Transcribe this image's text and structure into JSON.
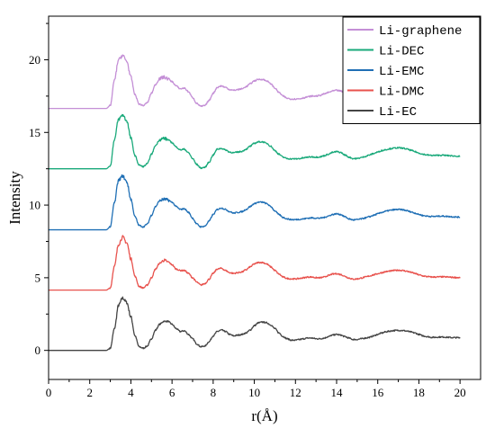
{
  "chart_data": {
    "type": "line",
    "title": "",
    "xlabel": "r(Å)",
    "ylabel": "Intensity",
    "xlim": [
      0,
      21
    ],
    "ylim": [
      -2,
      23
    ],
    "xticks": [
      0,
      2,
      4,
      6,
      8,
      10,
      12,
      14,
      16,
      18,
      20
    ],
    "yticks": [
      0,
      5,
      10,
      15,
      20
    ],
    "grid": false,
    "legend": {
      "position": "top-right",
      "order": [
        "Li-graphene",
        "Li-DEC",
        "Li-EMC",
        "Li-DMC",
        "Li-EC"
      ]
    },
    "series": [
      {
        "name": "Li-EC",
        "color": "#444444",
        "baseline": 0,
        "x": [
          0,
          2.8,
          3.0,
          3.2,
          3.4,
          3.6,
          3.8,
          4.0,
          4.2,
          4.4,
          4.6,
          4.8,
          5.0,
          5.2,
          5.4,
          5.6,
          5.8,
          6.0,
          6.2,
          6.4,
          6.6,
          6.8,
          7.0,
          7.2,
          7.4,
          7.6,
          7.8,
          8.0,
          8.2,
          8.4,
          8.6,
          8.8,
          9.0,
          9.2,
          9.4,
          9.6,
          9.8,
          10.0,
          10.2,
          10.4,
          10.6,
          10.8,
          11.0,
          11.2,
          11.4,
          11.6,
          11.8,
          12.0,
          12.2,
          12.4,
          12.6,
          12.8,
          13.0,
          13.2,
          13.4,
          13.6,
          13.8,
          14.0,
          14.2,
          14.4,
          14.6,
          14.8,
          15.0,
          15.2,
          15.4,
          15.6,
          15.8,
          16.0,
          16.2,
          16.4,
          16.6,
          16.8,
          17.0,
          17.2,
          17.4,
          17.6,
          17.8,
          18.0,
          18.2,
          18.4,
          18.6,
          18.8,
          19.0,
          19.2,
          19.4,
          19.6,
          19.8,
          20.0
        ],
        "y": [
          0,
          0,
          0.15,
          1.5,
          3.1,
          3.6,
          3.3,
          2.3,
          1.0,
          0.25,
          0.15,
          0.3,
          0.8,
          1.4,
          1.8,
          2.0,
          2.0,
          1.8,
          1.5,
          1.3,
          1.35,
          1.1,
          0.8,
          0.45,
          0.25,
          0.3,
          0.6,
          1.0,
          1.3,
          1.4,
          1.3,
          1.1,
          1.0,
          1.05,
          1.1,
          1.2,
          1.4,
          1.7,
          1.9,
          1.95,
          1.9,
          1.75,
          1.5,
          1.2,
          0.95,
          0.8,
          0.7,
          0.7,
          0.75,
          0.8,
          0.85,
          0.85,
          0.8,
          0.8,
          0.85,
          0.95,
          1.05,
          1.1,
          1.05,
          0.95,
          0.85,
          0.75,
          0.75,
          0.8,
          0.85,
          0.9,
          1.0,
          1.1,
          1.2,
          1.28,
          1.33,
          1.37,
          1.38,
          1.37,
          1.33,
          1.27,
          1.2,
          1.1,
          1.0,
          0.95,
          0.9,
          0.9,
          0.92,
          0.92,
          0.9,
          0.88,
          0.88,
          0.87
        ]
      },
      {
        "name": "Li-DMC",
        "color": "#e8524d",
        "baseline": 4.15,
        "x": [
          0,
          2.8,
          3.0,
          3.2,
          3.4,
          3.6,
          3.8,
          4.0,
          4.2,
          4.4,
          4.6,
          4.8,
          5.0,
          5.2,
          5.4,
          5.6,
          5.8,
          6.0,
          6.2,
          6.4,
          6.6,
          6.8,
          7.0,
          7.2,
          7.4,
          7.6,
          7.8,
          8.0,
          8.2,
          8.4,
          8.6,
          8.8,
          9.0,
          9.2,
          9.4,
          9.6,
          9.8,
          10.0,
          10.2,
          10.4,
          10.6,
          10.8,
          11.0,
          11.2,
          11.4,
          11.6,
          11.8,
          12.0,
          12.2,
          12.4,
          12.6,
          12.8,
          13.0,
          13.2,
          13.4,
          13.6,
          13.8,
          14.0,
          14.2,
          14.4,
          14.6,
          14.8,
          15.0,
          15.2,
          15.4,
          15.6,
          15.8,
          16.0,
          16.2,
          16.4,
          16.6,
          16.8,
          17.0,
          17.2,
          17.4,
          17.6,
          17.8,
          18.0,
          18.2,
          18.4,
          18.6,
          18.8,
          19.0,
          19.2,
          19.4,
          19.6,
          19.8,
          20.0
        ],
        "y": [
          4.15,
          4.15,
          4.3,
          5.8,
          7.3,
          7.8,
          7.4,
          6.3,
          5.1,
          4.4,
          4.3,
          4.5,
          5.0,
          5.6,
          6.0,
          6.2,
          6.1,
          5.9,
          5.6,
          5.5,
          5.5,
          5.3,
          5.0,
          4.7,
          4.5,
          4.6,
          4.9,
          5.3,
          5.6,
          5.65,
          5.5,
          5.35,
          5.3,
          5.35,
          5.4,
          5.55,
          5.75,
          5.95,
          6.05,
          6.05,
          5.95,
          5.75,
          5.5,
          5.25,
          5.05,
          4.95,
          4.92,
          4.92,
          4.95,
          5.0,
          5.05,
          5.05,
          5.0,
          5.0,
          5.05,
          5.15,
          5.25,
          5.28,
          5.22,
          5.1,
          4.98,
          4.9,
          4.92,
          4.98,
          5.05,
          5.12,
          5.2,
          5.28,
          5.35,
          5.42,
          5.46,
          5.5,
          5.52,
          5.5,
          5.45,
          5.38,
          5.3,
          5.2,
          5.12,
          5.08,
          5.05,
          5.05,
          5.06,
          5.06,
          5.05,
          5.03,
          5.02,
          5.0
        ]
      },
      {
        "name": "Li-EMC",
        "color": "#1f6fb5",
        "baseline": 8.3,
        "x": [
          0,
          2.8,
          3.0,
          3.2,
          3.4,
          3.6,
          3.8,
          4.0,
          4.2,
          4.4,
          4.6,
          4.8,
          5.0,
          5.2,
          5.4,
          5.6,
          5.8,
          6.0,
          6.2,
          6.4,
          6.6,
          6.8,
          7.0,
          7.2,
          7.4,
          7.6,
          7.8,
          8.0,
          8.2,
          8.4,
          8.6,
          8.8,
          9.0,
          9.2,
          9.4,
          9.6,
          9.8,
          10.0,
          10.2,
          10.4,
          10.6,
          10.8,
          11.0,
          11.2,
          11.4,
          11.6,
          11.8,
          12.0,
          12.2,
          12.4,
          12.6,
          12.8,
          13.0,
          13.2,
          13.4,
          13.6,
          13.8,
          14.0,
          14.2,
          14.4,
          14.6,
          14.8,
          15.0,
          15.2,
          15.4,
          15.6,
          15.8,
          16.0,
          16.2,
          16.4,
          16.6,
          16.8,
          17.0,
          17.2,
          17.4,
          17.6,
          17.8,
          18.0,
          18.2,
          18.4,
          18.6,
          18.8,
          19.0,
          19.2,
          19.4,
          19.6,
          19.8,
          20.0
        ],
        "y": [
          8.3,
          8.3,
          8.5,
          10.2,
          11.7,
          12.0,
          11.6,
          10.4,
          9.2,
          8.6,
          8.5,
          8.7,
          9.3,
          9.9,
          10.3,
          10.4,
          10.35,
          10.2,
          9.9,
          9.7,
          9.75,
          9.5,
          9.1,
          8.7,
          8.5,
          8.55,
          8.9,
          9.35,
          9.7,
          9.8,
          9.7,
          9.55,
          9.45,
          9.5,
          9.55,
          9.7,
          9.9,
          10.1,
          10.2,
          10.2,
          10.1,
          9.9,
          9.6,
          9.35,
          9.15,
          9.05,
          9.0,
          9.0,
          9.02,
          9.05,
          9.1,
          9.12,
          9.1,
          9.1,
          9.15,
          9.25,
          9.35,
          9.4,
          9.35,
          9.2,
          9.05,
          8.98,
          9.0,
          9.05,
          9.12,
          9.2,
          9.3,
          9.4,
          9.5,
          9.58,
          9.64,
          9.68,
          9.7,
          9.68,
          9.62,
          9.54,
          9.45,
          9.36,
          9.28,
          9.24,
          9.22,
          9.22,
          9.24,
          9.24,
          9.22,
          9.2,
          9.18,
          9.17
        ]
      },
      {
        "name": "Li-DEC",
        "color": "#19a97a",
        "baseline": 12.5,
        "x": [
          0,
          2.8,
          3.0,
          3.2,
          3.4,
          3.6,
          3.8,
          4.0,
          4.2,
          4.4,
          4.6,
          4.8,
          5.0,
          5.2,
          5.4,
          5.6,
          5.8,
          6.0,
          6.2,
          6.4,
          6.6,
          6.8,
          7.0,
          7.2,
          7.4,
          7.6,
          7.8,
          8.0,
          8.2,
          8.4,
          8.6,
          8.8,
          9.0,
          9.2,
          9.4,
          9.6,
          9.8,
          10.0,
          10.2,
          10.4,
          10.6,
          10.8,
          11.0,
          11.2,
          11.4,
          11.6,
          11.8,
          12.0,
          12.2,
          12.4,
          12.6,
          12.8,
          13.0,
          13.2,
          13.4,
          13.6,
          13.8,
          14.0,
          14.2,
          14.4,
          14.6,
          14.8,
          15.0,
          15.2,
          15.4,
          15.6,
          15.8,
          16.0,
          16.2,
          16.4,
          16.6,
          16.8,
          17.0,
          17.2,
          17.4,
          17.6,
          17.8,
          18.0,
          18.2,
          18.4,
          18.6,
          18.8,
          19.0,
          19.2,
          19.4,
          19.6,
          19.8,
          20.0
        ],
        "y": [
          12.5,
          12.5,
          12.7,
          14.5,
          15.9,
          16.2,
          15.8,
          14.6,
          13.4,
          12.75,
          12.65,
          12.85,
          13.5,
          14.1,
          14.5,
          14.6,
          14.5,
          14.3,
          14.0,
          13.8,
          13.85,
          13.6,
          13.2,
          12.8,
          12.55,
          12.6,
          12.95,
          13.45,
          13.85,
          13.9,
          13.8,
          13.65,
          13.6,
          13.65,
          13.7,
          13.85,
          14.05,
          14.25,
          14.35,
          14.35,
          14.25,
          14.05,
          13.75,
          13.5,
          13.3,
          13.2,
          13.18,
          13.18,
          13.2,
          13.25,
          13.3,
          13.32,
          13.3,
          13.32,
          13.4,
          13.5,
          13.62,
          13.68,
          13.62,
          13.45,
          13.3,
          13.2,
          13.2,
          13.27,
          13.35,
          13.45,
          13.55,
          13.65,
          13.75,
          13.82,
          13.88,
          13.92,
          13.94,
          13.92,
          13.86,
          13.78,
          13.68,
          13.58,
          13.5,
          13.45,
          13.42,
          13.42,
          13.43,
          13.43,
          13.41,
          13.39,
          13.37,
          13.35
        ]
      },
      {
        "name": "Li-graphene",
        "color": "#c48fd6",
        "baseline": 16.65,
        "x": [
          0,
          2.8,
          3.0,
          3.2,
          3.4,
          3.6,
          3.8,
          4.0,
          4.2,
          4.4,
          4.6,
          4.8,
          5.0,
          5.2,
          5.4,
          5.6,
          5.8,
          6.0,
          6.2,
          6.4,
          6.6,
          6.8,
          7.0,
          7.2,
          7.4,
          7.6,
          7.8,
          8.0,
          8.2,
          8.4,
          8.6,
          8.8,
          9.0,
          9.2,
          9.4,
          9.6,
          9.8,
          10.0,
          10.2,
          10.4,
          10.6,
          10.8,
          11.0,
          11.2,
          11.4,
          11.6,
          11.8,
          12.0,
          12.2,
          12.4,
          12.6,
          12.8,
          13.0,
          13.2,
          13.4,
          13.6,
          13.8,
          14.0,
          14.2,
          14.4,
          14.6,
          14.8,
          15.0,
          15.2,
          15.4,
          15.6,
          15.8,
          16.0,
          16.2,
          16.4,
          16.6,
          16.8,
          17.0
        ],
        "y": [
          16.65,
          16.65,
          16.85,
          18.6,
          20.0,
          20.3,
          19.9,
          18.8,
          17.6,
          16.95,
          16.85,
          17.05,
          17.7,
          18.3,
          18.7,
          18.8,
          18.7,
          18.5,
          18.2,
          18.0,
          18.05,
          17.8,
          17.4,
          17.0,
          16.8,
          16.85,
          17.2,
          17.7,
          18.1,
          18.2,
          18.1,
          17.95,
          17.9,
          17.95,
          18.0,
          18.15,
          18.35,
          18.55,
          18.65,
          18.65,
          18.55,
          18.35,
          18.05,
          17.75,
          17.5,
          17.35,
          17.3,
          17.3,
          17.32,
          17.38,
          17.45,
          17.5,
          17.5,
          17.55,
          17.65,
          17.75,
          17.85,
          17.9,
          17.85,
          17.7,
          17.55,
          17.45,
          17.45,
          17.52,
          17.6,
          17.7,
          17.8,
          17.9,
          18.0,
          18.08,
          18.14,
          18.18,
          18.2
        ]
      }
    ]
  }
}
